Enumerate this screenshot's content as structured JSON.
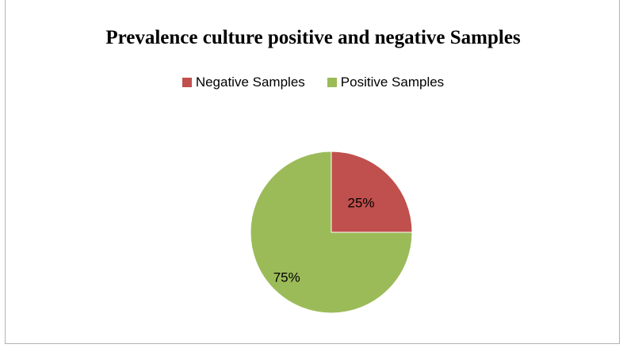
{
  "chart_data": {
    "type": "pie",
    "title": "Prevalence culture positive and negative Samples",
    "legend_position": "top",
    "categories": [
      "Negative Samples",
      "Positive Samples"
    ],
    "values": [
      25,
      75
    ],
    "labels": [
      "25%",
      "75%"
    ],
    "colors": [
      "#c0504d",
      "#9bbb59"
    ]
  }
}
